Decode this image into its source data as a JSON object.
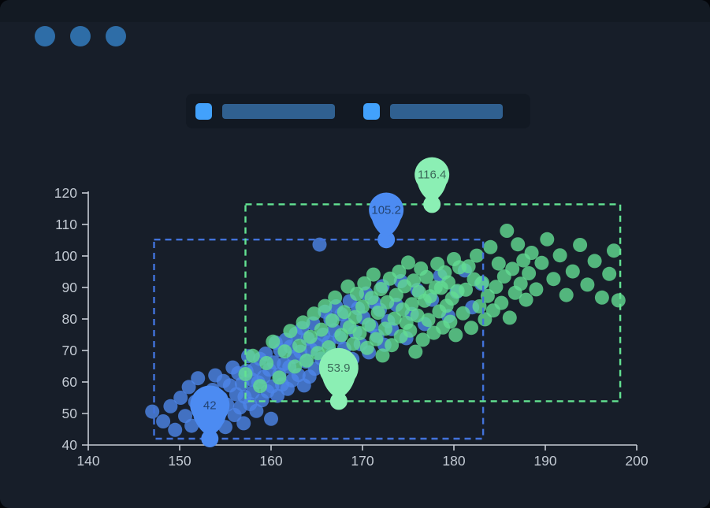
{
  "window": {
    "dot_color": "#2e6da7",
    "dots": [
      "window-dot-1",
      "window-dot-2",
      "window-dot-3"
    ]
  },
  "legend": {
    "items": [
      {
        "name": "legend-item-series-blue",
        "swatch_color": "#42a1fc",
        "bar_color": "#306090"
      },
      {
        "name": "legend-item-series-green",
        "swatch_color": "#42a1fc",
        "bar_color": "#306090"
      }
    ]
  },
  "chart_data": {
    "type": "scatter",
    "title": "",
    "xlabel": "",
    "ylabel": "",
    "xlim": [
      140,
      200
    ],
    "ylim": [
      40,
      120
    ],
    "x_ticks": [
      140,
      150,
      160,
      170,
      180,
      190,
      200
    ],
    "y_ticks": [
      40,
      50,
      60,
      70,
      80,
      90,
      100,
      110,
      120
    ],
    "grid": false,
    "legend_position": "top",
    "axis_color": "#c6cbd4",
    "series": [
      {
        "name": "series-blue",
        "color": "#4e86e8",
        "pin_color": "#4c8bf2",
        "area_color": "#4273db",
        "mark_area": {
          "x": [
            147.2,
            183.2
          ],
          "y": [
            42,
            105.2
          ]
        },
        "mark_points": [
          {
            "type": "max",
            "label": "105.2",
            "x": 172.6,
            "y": 105.2,
            "r": 22
          },
          {
            "type": "min",
            "label": "42",
            "x": 153.3,
            "y": 42,
            "r": 25
          }
        ],
        "points": [
          [
            147.0,
            50.6
          ],
          [
            148.2,
            47.5
          ],
          [
            149.0,
            52.3
          ],
          [
            149.5,
            44.8
          ],
          [
            150.1,
            55.0
          ],
          [
            150.6,
            49.2
          ],
          [
            151.0,
            58.4
          ],
          [
            151.3,
            46.1
          ],
          [
            151.7,
            53.7
          ],
          [
            152.0,
            61.2
          ],
          [
            152.3,
            48.9
          ],
          [
            152.6,
            55.8
          ],
          [
            153.0,
            50.2
          ],
          [
            153.3,
            42.0
          ],
          [
            153.6,
            57.5
          ],
          [
            153.9,
            62.1
          ],
          [
            154.2,
            48.4
          ],
          [
            154.5,
            54.9
          ],
          [
            154.8,
            60.3
          ],
          [
            155.0,
            45.7
          ],
          [
            155.2,
            52.8
          ],
          [
            155.5,
            58.9
          ],
          [
            155.8,
            64.6
          ],
          [
            156.0,
            49.5
          ],
          [
            156.2,
            56.1
          ],
          [
            156.4,
            62.8
          ],
          [
            156.6,
            51.9
          ],
          [
            156.8,
            59.4
          ],
          [
            157.0,
            46.9
          ],
          [
            157.1,
            55.3
          ],
          [
            157.3,
            63.5
          ],
          [
            157.5,
            68.2
          ],
          [
            157.7,
            53.0
          ],
          [
            157.9,
            60.8
          ],
          [
            158.0,
            56.7
          ],
          [
            158.2,
            64.1
          ],
          [
            158.4,
            50.8
          ],
          [
            158.6,
            59.9
          ],
          [
            158.8,
            67.3
          ],
          [
            159.0,
            54.2
          ],
          [
            159.2,
            61.6
          ],
          [
            159.4,
            69.0
          ],
          [
            159.6,
            57.0
          ],
          [
            159.8,
            63.9
          ],
          [
            160.0,
            48.3
          ],
          [
            160.1,
            58.6
          ],
          [
            160.3,
            66.2
          ],
          [
            160.5,
            72.5
          ],
          [
            160.7,
            55.6
          ],
          [
            160.9,
            62.4
          ],
          [
            161.0,
            70.1
          ],
          [
            161.2,
            59.2
          ],
          [
            161.4,
            65.7
          ],
          [
            161.6,
            73.4
          ],
          [
            161.8,
            57.8
          ],
          [
            162.0,
            64.8
          ],
          [
            162.1,
            71.2
          ],
          [
            162.3,
            60.5
          ],
          [
            162.5,
            68.0
          ],
          [
            162.7,
            75.3
          ],
          [
            163.0,
            62.2
          ],
          [
            163.2,
            69.6
          ],
          [
            163.4,
            77.1
          ],
          [
            163.6,
            58.9
          ],
          [
            163.8,
            66.5
          ],
          [
            164.0,
            73.8
          ],
          [
            164.2,
            61.7
          ],
          [
            164.4,
            70.3
          ],
          [
            164.6,
            78.6
          ],
          [
            164.8,
            64.2
          ],
          [
            165.0,
            71.9
          ],
          [
            165.3,
            103.6
          ],
          [
            165.5,
            67.4
          ],
          [
            165.7,
            75.0
          ],
          [
            165.9,
            82.3
          ],
          [
            166.1,
            63.5
          ],
          [
            166.3,
            72.6
          ],
          [
            166.5,
            79.8
          ],
          [
            166.7,
            68.9
          ],
          [
            166.9,
            76.4
          ],
          [
            167.1,
            84.0
          ],
          [
            167.3,
            65.8
          ],
          [
            167.5,
            74.1
          ],
          [
            167.7,
            81.5
          ],
          [
            168.0,
            70.6
          ],
          [
            168.3,
            78.2
          ],
          [
            168.6,
            85.7
          ],
          [
            168.9,
            67.3
          ],
          [
            169.2,
            75.9
          ],
          [
            169.5,
            83.4
          ],
          [
            169.8,
            72.0
          ],
          [
            170.1,
            80.5
          ],
          [
            170.4,
            88.1
          ],
          [
            170.7,
            69.4
          ],
          [
            171.0,
            77.7
          ],
          [
            171.3,
            85.2
          ],
          [
            171.6,
            74.6
          ],
          [
            171.9,
            82.9
          ],
          [
            172.2,
            90.4
          ],
          [
            172.4,
            71.8
          ],
          [
            172.6,
            105.2
          ],
          [
            172.8,
            79.3
          ],
          [
            173.2,
            76.8
          ],
          [
            173.7,
            84.5
          ],
          [
            174.2,
            92.0
          ],
          [
            174.8,
            73.9
          ],
          [
            175.4,
            81.6
          ],
          [
            176.0,
            89.2
          ],
          [
            176.8,
            78.4
          ],
          [
            177.6,
            86.1
          ],
          [
            178.5,
            93.7
          ],
          [
            179.4,
            80.9
          ],
          [
            180.3,
            88.6
          ],
          [
            181.2,
            95.4
          ],
          [
            182.0,
            83.7
          ],
          [
            183.0,
            91.2
          ]
        ]
      },
      {
        "name": "series-green",
        "color": "#63dc92",
        "pin_color": "#8befb4",
        "area_color": "#63e392",
        "mark_area": {
          "x": [
            157.2,
            198.2
          ],
          "y": [
            53.9,
            116.4
          ]
        },
        "mark_points": [
          {
            "type": "max",
            "label": "116.4",
            "x": 177.6,
            "y": 116.4,
            "r": 22
          },
          {
            "type": "min",
            "label": "53.9",
            "x": 167.4,
            "y": 53.9,
            "r": 25
          }
        ],
        "points": [
          [
            157.2,
            62.5
          ],
          [
            158.0,
            68.3
          ],
          [
            158.8,
            58.7
          ],
          [
            159.5,
            66.0
          ],
          [
            160.2,
            72.8
          ],
          [
            160.9,
            61.4
          ],
          [
            161.5,
            69.7
          ],
          [
            162.1,
            76.2
          ],
          [
            162.6,
            64.9
          ],
          [
            163.1,
            71.5
          ],
          [
            163.5,
            78.9
          ],
          [
            163.9,
            66.8
          ],
          [
            164.3,
            74.3
          ],
          [
            164.7,
            81.7
          ],
          [
            165.1,
            69.2
          ],
          [
            165.5,
            76.6
          ],
          [
            165.9,
            84.1
          ],
          [
            166.3,
            71.0
          ],
          [
            166.7,
            79.5
          ],
          [
            167.0,
            86.8
          ],
          [
            167.4,
            53.9
          ],
          [
            167.7,
            74.9
          ],
          [
            168.0,
            82.2
          ],
          [
            168.2,
            67.6
          ],
          [
            168.4,
            90.3
          ],
          [
            168.6,
            77.4
          ],
          [
            169.0,
            72.1
          ],
          [
            169.2,
            80.6
          ],
          [
            169.4,
            88.0
          ],
          [
            169.7,
            75.5
          ],
          [
            170.0,
            83.9
          ],
          [
            170.2,
            91.3
          ],
          [
            170.5,
            70.8
          ],
          [
            170.7,
            78.2
          ],
          [
            171.0,
            86.7
          ],
          [
            171.2,
            94.1
          ],
          [
            171.5,
            73.6
          ],
          [
            171.7,
            82.0
          ],
          [
            172.0,
            89.5
          ],
          [
            172.2,
            68.4
          ],
          [
            172.5,
            76.9
          ],
          [
            172.7,
            85.3
          ],
          [
            173.0,
            92.8
          ],
          [
            173.2,
            71.7
          ],
          [
            173.5,
            80.1
          ],
          [
            173.7,
            87.6
          ],
          [
            174.0,
            95.0
          ],
          [
            174.2,
            74.5
          ],
          [
            174.4,
            83.0
          ],
          [
            174.6,
            90.4
          ],
          [
            174.8,
            78.8
          ],
          [
            175.0,
            97.9
          ],
          [
            175.2,
            76.3
          ],
          [
            175.4,
            84.7
          ],
          [
            175.6,
            92.2
          ],
          [
            175.8,
            69.6
          ],
          [
            176.0,
            81.1
          ],
          [
            176.2,
            88.5
          ],
          [
            176.4,
            96.0
          ],
          [
            176.6,
            73.4
          ],
          [
            176.8,
            85.8
          ],
          [
            177.0,
            93.3
          ],
          [
            177.2,
            79.7
          ],
          [
            177.4,
            87.2
          ],
          [
            177.6,
            116.4
          ],
          [
            177.8,
            75.6
          ],
          [
            178.0,
            90.0
          ],
          [
            178.2,
            97.5
          ],
          [
            178.4,
            82.4
          ],
          [
            178.6,
            89.9
          ],
          [
            178.8,
            77.3
          ],
          [
            179.0,
            94.8
          ],
          [
            179.2,
            84.2
          ],
          [
            179.4,
            91.6
          ],
          [
            179.6,
            79.1
          ],
          [
            179.8,
            86.5
          ],
          [
            180.0,
            99.0
          ],
          [
            180.2,
            74.9
          ],
          [
            180.4,
            88.9
          ],
          [
            180.6,
            96.4
          ],
          [
            181.0,
            81.8
          ],
          [
            181.3,
            89.3
          ],
          [
            181.6,
            96.7
          ],
          [
            181.9,
            77.2
          ],
          [
            182.2,
            92.6
          ],
          [
            182.5,
            100.1
          ],
          [
            182.8,
            84.0
          ],
          [
            183.1,
            91.5
          ],
          [
            183.4,
            79.9
          ],
          [
            183.7,
            87.3
          ],
          [
            184.0,
            102.8
          ],
          [
            184.3,
            82.7
          ],
          [
            184.6,
            90.2
          ],
          [
            184.9,
            97.6
          ],
          [
            185.2,
            85.1
          ],
          [
            185.5,
            93.5
          ],
          [
            185.8,
            108.0
          ],
          [
            186.1,
            80.4
          ],
          [
            186.4,
            95.9
          ],
          [
            186.7,
            88.3
          ],
          [
            187.0,
            103.7
          ],
          [
            187.3,
            91.2
          ],
          [
            187.6,
            98.6
          ],
          [
            187.9,
            86.1
          ],
          [
            188.2,
            94.5
          ],
          [
            188.5,
            101.0
          ],
          [
            189.0,
            89.4
          ],
          [
            189.6,
            97.8
          ],
          [
            190.2,
            105.3
          ],
          [
            190.9,
            92.7
          ],
          [
            191.6,
            100.2
          ],
          [
            192.3,
            87.6
          ],
          [
            193.0,
            95.1
          ],
          [
            193.8,
            103.5
          ],
          [
            194.6,
            90.9
          ],
          [
            195.4,
            98.4
          ],
          [
            196.2,
            86.8
          ],
          [
            197.0,
            94.3
          ],
          [
            197.5,
            101.7
          ],
          [
            198.0,
            85.9
          ]
        ]
      }
    ]
  }
}
